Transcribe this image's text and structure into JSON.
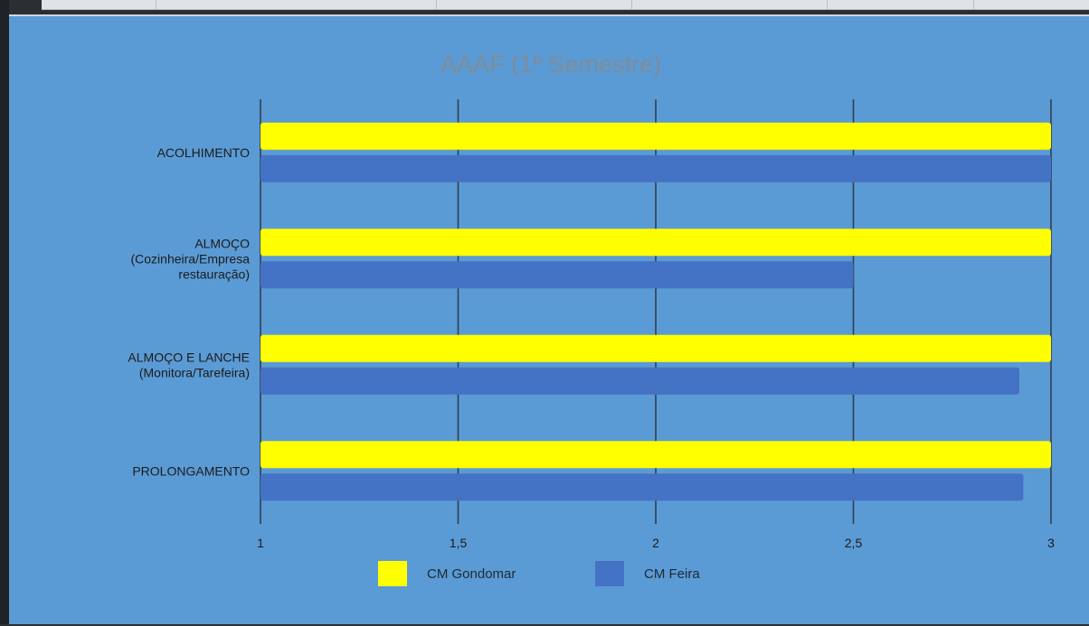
{
  "chart_data": {
    "type": "bar",
    "orientation": "horizontal",
    "title": "AAAF   (1º Semestre)",
    "categories": [
      [
        "ACOLHIMENTO"
      ],
      [
        "ALMOÇO",
        "(Cozinheira/Empresa",
        "restauração)"
      ],
      [
        "ALMOÇO E LANCHE",
        "(Monitora/Tarefeira)"
      ],
      [
        "PROLONGAMENTO"
      ]
    ],
    "series": [
      {
        "name": "CM Gondomar",
        "color": "#ffff00",
        "values": [
          3,
          3,
          3,
          3
        ]
      },
      {
        "name": "CM Feira",
        "color": "#4472c4",
        "values": [
          3,
          2.5,
          2.92,
          2.93
        ]
      }
    ],
    "xlim": [
      1,
      3
    ],
    "ticks": [
      1,
      1.5,
      2,
      2.5,
      3
    ],
    "tick_labels": [
      "1",
      "1,5",
      "2",
      "2,5",
      "3"
    ],
    "grid": true,
    "legend_position": "bottom"
  }
}
